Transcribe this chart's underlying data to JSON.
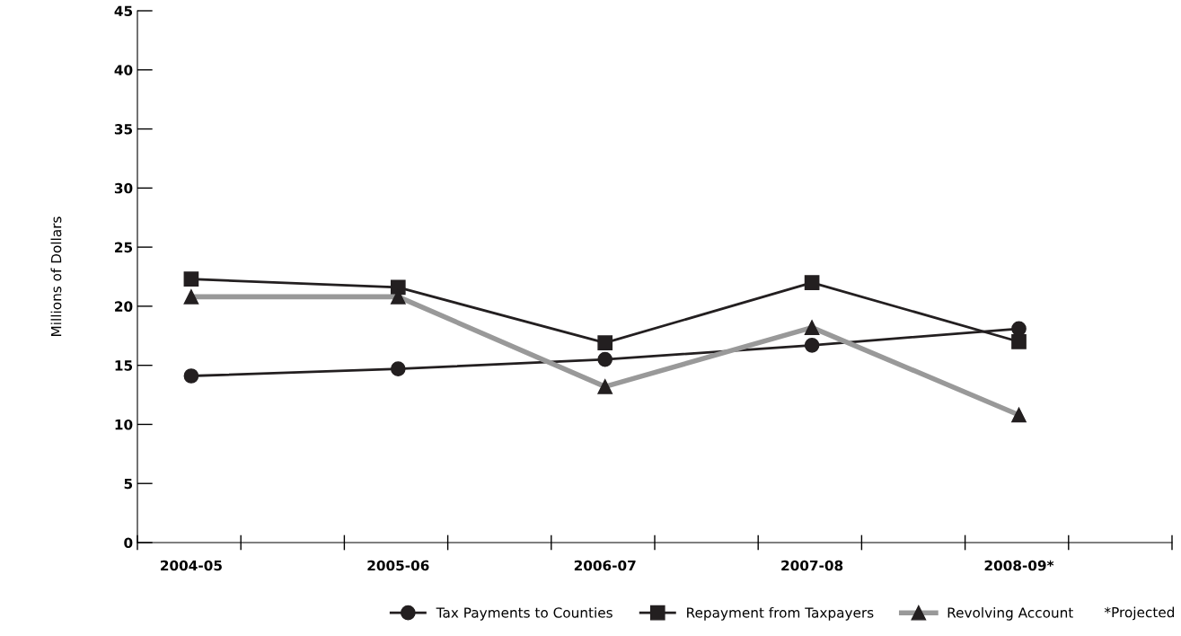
{
  "chart_data": {
    "type": "line",
    "ylabel": "Millions of Dollars",
    "categories": [
      "2004-05",
      "2005-06",
      "2006-07",
      "2007-08",
      "2008-09*"
    ],
    "series": [
      {
        "name": "Tax Payments to Counties",
        "color": "#231f20",
        "marker": "circle",
        "values": [
          14.1,
          14.7,
          15.5,
          16.7,
          18.1
        ]
      },
      {
        "name": "Repayment from Taxpayers",
        "color": "#231f20",
        "marker": "square",
        "values": [
          22.3,
          21.6,
          16.9,
          22.0,
          17.0
        ]
      },
      {
        "name": "Revolving Account",
        "color": "#999999",
        "marker": "triangle",
        "values": [
          20.8,
          20.8,
          13.2,
          18.2,
          10.8
        ]
      }
    ],
    "ylim": [
      0,
      45
    ],
    "yticks": [
      0,
      5,
      10,
      15,
      20,
      25,
      30,
      35,
      40,
      45
    ],
    "grid": false,
    "legend": "bottom",
    "annotations": [
      "*Projected"
    ]
  }
}
